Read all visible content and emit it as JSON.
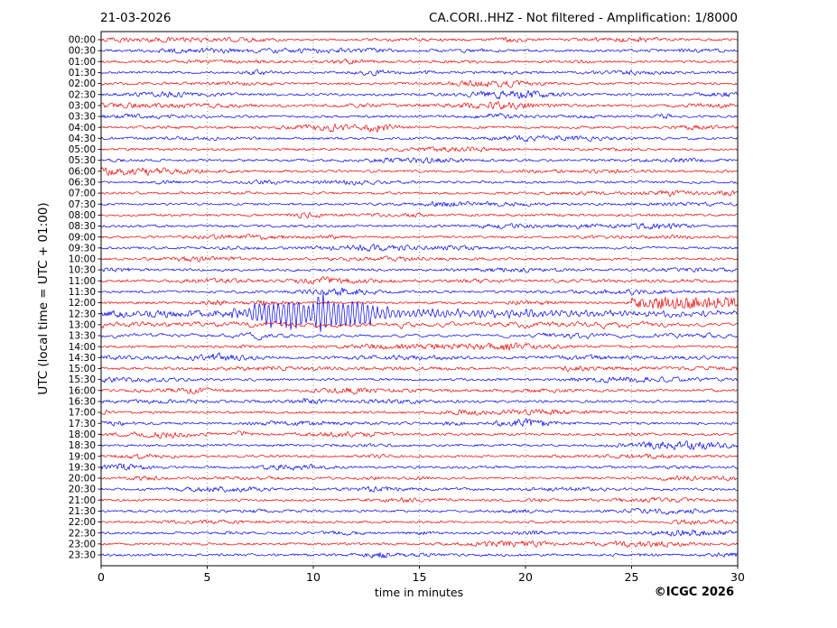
{
  "chart_data": {
    "type": "line",
    "subtype": "helicorder-seismogram",
    "title_left": "21-03-2026",
    "title_right": "CA.CORI..HHZ - Not filtered - Amplification: 1/8000",
    "xlabel": "time in minutes",
    "ylabel": "UTC (local time = UTC + 01:00)",
    "copyright": "©ICGC 2026",
    "x_range": [
      0,
      30
    ],
    "x_ticks": [
      0,
      5,
      10,
      15,
      20,
      25,
      30
    ],
    "grid_minutes": [
      5,
      10,
      15,
      20,
      25
    ],
    "grid_color": "#888888",
    "frame_color": "#000000",
    "trace_colors": {
      "red": "#ee0000",
      "blue": "#0000ee"
    },
    "minutes_per_row": 30,
    "rows": [
      {
        "label": "00:00",
        "color": "red"
      },
      {
        "label": "00:30",
        "color": "blue"
      },
      {
        "label": "01:00",
        "color": "red"
      },
      {
        "label": "01:30",
        "color": "blue"
      },
      {
        "label": "02:00",
        "color": "red"
      },
      {
        "label": "02:30",
        "color": "blue"
      },
      {
        "label": "03:00",
        "color": "red"
      },
      {
        "label": "03:30",
        "color": "blue"
      },
      {
        "label": "04:00",
        "color": "red"
      },
      {
        "label": "04:30",
        "color": "blue"
      },
      {
        "label": "05:00",
        "color": "red"
      },
      {
        "label": "05:30",
        "color": "blue"
      },
      {
        "label": "06:00",
        "color": "red"
      },
      {
        "label": "06:30",
        "color": "blue"
      },
      {
        "label": "07:00",
        "color": "red"
      },
      {
        "label": "07:30",
        "color": "blue"
      },
      {
        "label": "08:00",
        "color": "red"
      },
      {
        "label": "08:30",
        "color": "blue"
      },
      {
        "label": "09:00",
        "color": "red"
      },
      {
        "label": "09:30",
        "color": "blue"
      },
      {
        "label": "10:00",
        "color": "red"
      },
      {
        "label": "10:30",
        "color": "blue"
      },
      {
        "label": "11:00",
        "color": "red"
      },
      {
        "label": "11:30",
        "color": "blue"
      },
      {
        "label": "12:00",
        "color": "red",
        "texture": "hf",
        "envelope": [
          [
            0,
            0.9
          ],
          [
            24.9,
            0.9
          ],
          [
            25.02,
            6.8
          ],
          [
            25.4,
            5.2
          ],
          [
            26.5,
            4.8
          ],
          [
            28.5,
            4.4
          ],
          [
            30,
            4.2
          ]
        ],
        "note": "sudden high-frequency onset at minute 25 (event start 12:25 UTC)"
      },
      {
        "label": "12:30",
        "color": "blue",
        "texture": "event",
        "envelope": [
          [
            0,
            2.6
          ],
          [
            1,
            2.9
          ],
          [
            6,
            2.8
          ],
          [
            10,
            2.6
          ],
          [
            16,
            2.2
          ],
          [
            22,
            1.9
          ],
          [
            30,
            1.7
          ]
        ],
        "osc": {
          "period": 0.24,
          "envelope": [
            [
              6.0,
              0
            ],
            [
              6.2,
              4.5
            ],
            [
              6.55,
              3.5
            ],
            [
              6.95,
              5
            ],
            [
              7.3,
              12
            ],
            [
              7.8,
              14
            ],
            [
              8.4,
              12
            ],
            [
              9.0,
              15
            ],
            [
              9.6,
              13
            ],
            [
              10.1,
              17
            ],
            [
              10.4,
              26
            ],
            [
              10.75,
              15
            ],
            [
              11.2,
              15
            ],
            [
              11.8,
              13.5
            ],
            [
              12.4,
              11
            ],
            [
              12.9,
              8
            ],
            [
              13.6,
              6.5
            ],
            [
              14.6,
              5
            ],
            [
              15.6,
              3.8
            ],
            [
              16.8,
              3
            ],
            [
              18.5,
              2.4
            ],
            [
              21,
              2
            ],
            [
              24,
              1.7
            ],
            [
              27,
              1.5
            ],
            [
              30,
              1.3
            ]
          ]
        },
        "note": "main seismic event: large oscillations minutes ~6.5-13, peak near minute 10.4, slow decay to minute 30"
      },
      {
        "label": "13:00",
        "color": "red",
        "texture": "lf",
        "envelope": [
          [
            0,
            2.7
          ],
          [
            3,
            2.5
          ],
          [
            8,
            2.3
          ],
          [
            12,
            1.9
          ],
          [
            17,
            1.7
          ],
          [
            24,
            1.5
          ],
          [
            30,
            1.35
          ]
        ],
        "note": "elevated coda, slowly decaying"
      },
      {
        "label": "13:30",
        "color": "blue",
        "texture": "lf",
        "envelope": [
          [
            0,
            1.8
          ],
          [
            5,
            1.6
          ],
          [
            12,
            1.35
          ],
          [
            20,
            1.15
          ],
          [
            30,
            1.05
          ]
        ],
        "note": "slightly elevated coda"
      },
      {
        "label": "14:00",
        "color": "red"
      },
      {
        "label": "14:30",
        "color": "blue"
      },
      {
        "label": "15:00",
        "color": "red"
      },
      {
        "label": "15:30",
        "color": "blue"
      },
      {
        "label": "16:00",
        "color": "red"
      },
      {
        "label": "16:30",
        "color": "blue"
      },
      {
        "label": "17:00",
        "color": "red"
      },
      {
        "label": "17:30",
        "color": "blue"
      },
      {
        "label": "18:00",
        "color": "red"
      },
      {
        "label": "18:30",
        "color": "blue"
      },
      {
        "label": "19:00",
        "color": "red"
      },
      {
        "label": "19:30",
        "color": "blue"
      },
      {
        "label": "20:00",
        "color": "red"
      },
      {
        "label": "20:30",
        "color": "blue"
      },
      {
        "label": "21:00",
        "color": "red"
      },
      {
        "label": "21:30",
        "color": "blue"
      },
      {
        "label": "22:00",
        "color": "red"
      },
      {
        "label": "22:30",
        "color": "blue"
      },
      {
        "label": "23:00",
        "color": "red"
      },
      {
        "label": "23:30",
        "color": "blue"
      }
    ]
  }
}
